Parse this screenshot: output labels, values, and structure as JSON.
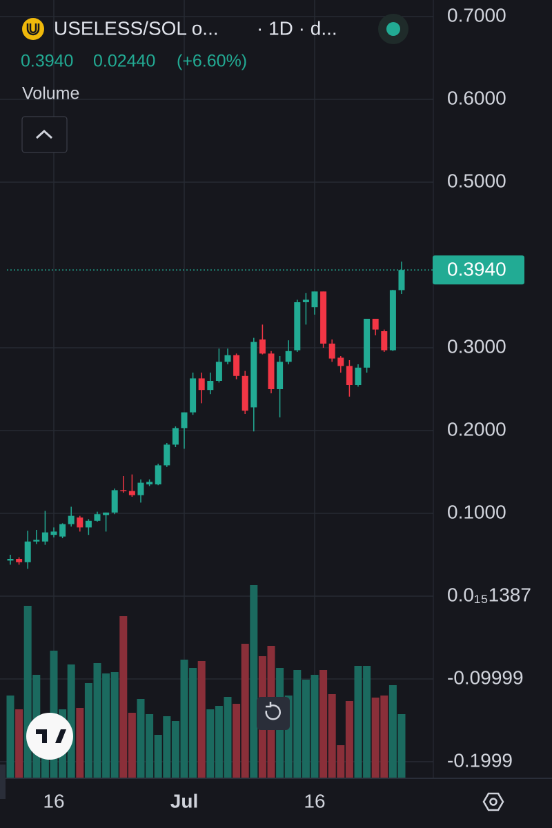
{
  "header": {
    "symbol": "USELESS/SOL o...",
    "interval": "· 1D · d...",
    "last": "0.3940",
    "change": "0.02440",
    "change_pct": "(+6.60%)",
    "volume_label": "Volume"
  },
  "chart_data": {
    "type": "candlestick",
    "categories": [
      null,
      null,
      null,
      null,
      null,
      "16",
      null,
      null,
      null,
      null,
      null,
      null,
      null,
      null,
      null,
      null,
      null,
      null,
      null,
      null,
      "Jul",
      null,
      null,
      null,
      null,
      null,
      null,
      null,
      null,
      null,
      null,
      null,
      null,
      null,
      null,
      "16",
      null,
      null,
      null,
      null,
      null,
      null,
      null,
      null,
      null,
      null
    ],
    "open": [
      0.043,
      0.045,
      0.041,
      0.066,
      0.066,
      0.074,
      0.072,
      0.087,
      0.095,
      0.083,
      0.091,
      0.098,
      0.101,
      0.128,
      0.127,
      0.122,
      0.135,
      0.135,
      0.158,
      0.183,
      0.203,
      0.222,
      0.263,
      0.249,
      0.26,
      0.283,
      0.291,
      0.266,
      0.228,
      0.31,
      0.293,
      0.25,
      0.283,
      0.297,
      0.355,
      0.349,
      0.368,
      0.305,
      0.288,
      0.278,
      0.255,
      0.276,
      0.335,
      0.32,
      0.297,
      0.3696
    ],
    "high": [
      0.05,
      0.047,
      0.079,
      0.08,
      0.103,
      0.083,
      0.088,
      0.108,
      0.097,
      0.093,
      0.102,
      0.101,
      0.13,
      0.145,
      0.147,
      0.141,
      0.141,
      0.16,
      0.185,
      0.205,
      0.222,
      0.27,
      0.27,
      0.27,
      0.299,
      0.299,
      0.293,
      0.272,
      0.312,
      0.328,
      0.296,
      0.29,
      0.309,
      0.358,
      0.366,
      0.368,
      0.368,
      0.31,
      0.29,
      0.285,
      0.28,
      0.335,
      0.335,
      0.322,
      0.37,
      0.404
    ],
    "low": [
      0.038,
      0.038,
      0.033,
      0.063,
      0.062,
      0.071,
      0.07,
      0.084,
      0.078,
      0.074,
      0.09,
      0.078,
      0.099,
      0.125,
      0.12,
      0.113,
      0.133,
      0.134,
      0.156,
      0.18,
      0.178,
      0.219,
      0.233,
      0.244,
      0.258,
      0.28,
      0.262,
      0.22,
      0.199,
      0.292,
      0.245,
      0.216,
      0.28,
      0.295,
      0.328,
      0.34,
      0.3,
      0.283,
      0.27,
      0.241,
      0.253,
      0.27,
      0.315,
      0.295,
      0.296,
      0.365
    ],
    "close": [
      0.045,
      0.041,
      0.066,
      0.068,
      0.077,
      0.078,
      0.087,
      0.097,
      0.083,
      0.091,
      0.099,
      0.101,
      0.128,
      0.127,
      0.122,
      0.137,
      0.138,
      0.158,
      0.183,
      0.203,
      0.222,
      0.263,
      0.249,
      0.26,
      0.283,
      0.291,
      0.266,
      0.224,
      0.307,
      0.293,
      0.25,
      0.283,
      0.296,
      0.355,
      0.358,
      0.368,
      0.305,
      0.287,
      0.278,
      0.255,
      0.276,
      0.335,
      0.322,
      0.297,
      0.3696,
      0.394
    ],
    "volume": [
      120,
      100,
      250,
      150,
      85,
      185,
      100,
      165,
      102,
      138,
      167,
      152,
      154,
      235,
      95,
      115,
      93,
      63,
      90,
      83,
      172,
      160,
      170,
      100,
      105,
      118,
      108,
      195,
      280,
      177,
      192,
      160,
      120,
      157,
      143,
      150,
      157,
      122,
      48,
      112,
      163,
      163,
      117,
      120,
      135,
      93
    ],
    "ylim": [
      -0.22,
      0.72
    ],
    "yticks": [
      {
        "value": 0.7,
        "label": "0.7000"
      },
      {
        "value": 0.6,
        "label": "0.6000"
      },
      {
        "value": 0.5,
        "label": "0.5000"
      },
      {
        "value": 0.3,
        "label": "0.3000"
      },
      {
        "value": 0.2,
        "label": "0.2000"
      },
      {
        "value": 0.1,
        "label": "0.1000"
      },
      {
        "value": 1.387e-16,
        "label": "0.0₁₅1387"
      },
      -0.09999,
      -0.1999
    ],
    "price_line": {
      "value": 0.394,
      "label": "0.3940"
    },
    "grid": true,
    "up_color": "#22ab94",
    "down_color": "#f23645",
    "volume_up_color": "#1b6a5f",
    "volume_down_color": "#8a2f39"
  }
}
